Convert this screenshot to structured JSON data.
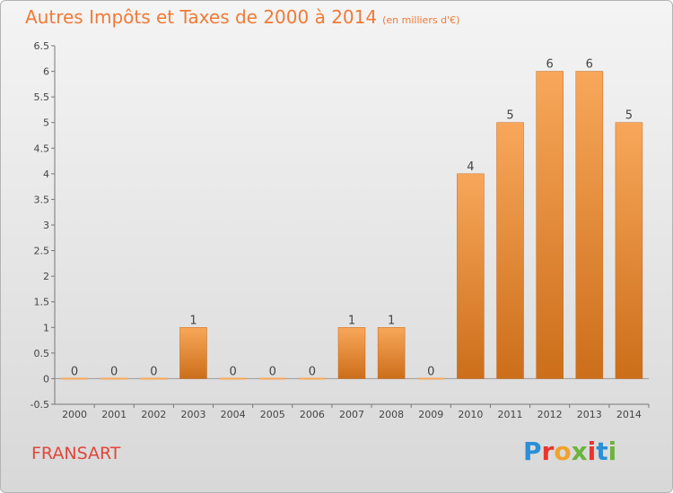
{
  "header": {
    "title": "Autres Impôts et Taxes de 2000 à 2014",
    "subtitle": "(en milliers d'€)"
  },
  "footer": {
    "commune": "FRANSART",
    "logo_letters": [
      {
        "ch": "P",
        "color": "#2a8fd6"
      },
      {
        "ch": "r",
        "color": "#e7362b"
      },
      {
        "ch": "o",
        "color": "#f2a12c"
      },
      {
        "ch": "x",
        "color": "#6cb33f"
      },
      {
        "ch": "i",
        "color": "#e7362b"
      },
      {
        "ch": "t",
        "color": "#2a8fd6"
      },
      {
        "ch": "i",
        "color": "#6cb33f"
      }
    ]
  },
  "colors": {
    "bar_light": "#f8a75a",
    "bar_dark": "#cc6e1a",
    "title": "#f07a36",
    "commune": "#e0463a"
  },
  "chart_data": {
    "type": "bar",
    "categories": [
      "2000",
      "2001",
      "2002",
      "2003",
      "2004",
      "2005",
      "2006",
      "2007",
      "2008",
      "2009",
      "2010",
      "2011",
      "2012",
      "2013",
      "2014"
    ],
    "values": [
      0,
      0,
      0,
      1,
      0,
      0,
      0,
      1,
      1,
      0,
      4,
      5,
      6,
      6,
      5
    ],
    "data_labels": [
      "0",
      "0",
      "0",
      "1",
      "0",
      "0",
      "0",
      "1",
      "1",
      "0",
      "4",
      "5",
      "6",
      "6",
      "5"
    ],
    "ylim": [
      -0.5,
      6.5
    ],
    "yticks": [
      -0.5,
      0,
      0.5,
      1,
      1.5,
      2,
      2.5,
      3,
      3.5,
      4,
      4.5,
      5,
      5.5,
      6,
      6.5
    ],
    "ytick_labels": [
      "-0.5",
      "0",
      "0.5",
      "1",
      "1.5",
      "2",
      "2.5",
      "3",
      "3.5",
      "4",
      "4.5",
      "5",
      "5.5",
      "6",
      "6.5"
    ],
    "grid": false,
    "title": "Autres Impôts et Taxes de 2000 à 2014",
    "xlabel": "",
    "ylabel": ""
  }
}
